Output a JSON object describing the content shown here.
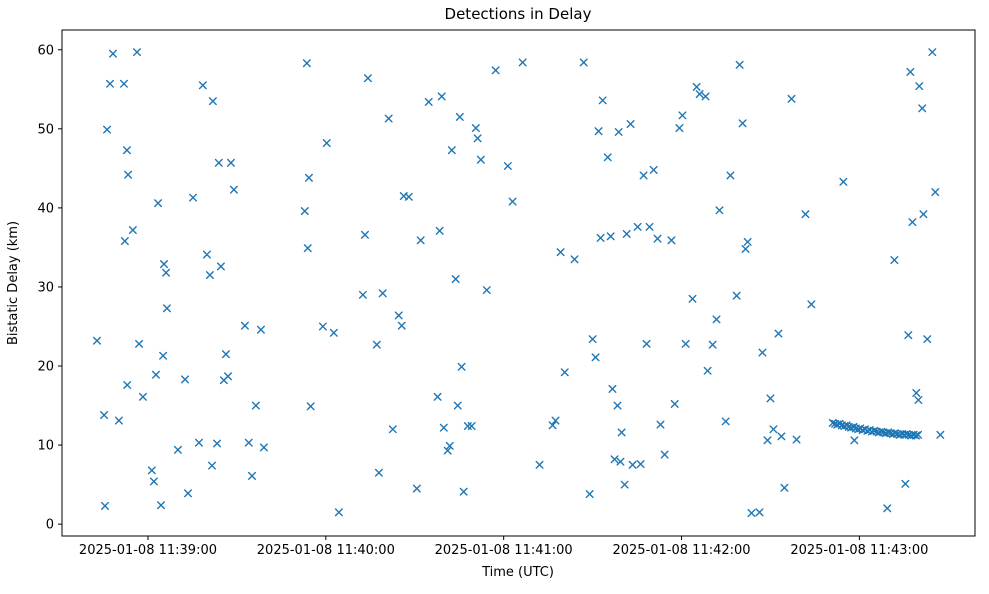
{
  "chart_data": {
    "type": "scatter",
    "title": "Detections in Delay",
    "xlabel": "Time (UTC)",
    "ylabel": "Bistatic Delay (km)",
    "marker": "x",
    "marker_color": "#1f77b4",
    "grid": false,
    "legend": "none",
    "x_unit": "seconds since 2025-01-08 11:38:00 UTC",
    "xlim": [
      31,
      339
    ],
    "ylim": [
      -1.5,
      62.5
    ],
    "x_ticks": [
      {
        "value": 60,
        "label": "2025-01-08 11:39:00"
      },
      {
        "value": 120,
        "label": "2025-01-08 11:40:00"
      },
      {
        "value": 180,
        "label": "2025-01-08 11:41:00"
      },
      {
        "value": 240,
        "label": "2025-01-08 11:42:00"
      },
      {
        "value": 300,
        "label": "2025-01-08 11:43:00"
      }
    ],
    "y_ticks": [
      0,
      10,
      20,
      30,
      40,
      50,
      60
    ],
    "points": [
      [
        42.8,
        23.2
      ],
      [
        45.2,
        13.8
      ],
      [
        45.5,
        2.3
      ],
      [
        46.2,
        49.9
      ],
      [
        47.2,
        55.7
      ],
      [
        48.2,
        59.5
      ],
      [
        50.2,
        13.1
      ],
      [
        51.9,
        55.7
      ],
      [
        52.2,
        35.8
      ],
      [
        52.9,
        47.3
      ],
      [
        53.3,
        44.2
      ],
      [
        53.0,
        17.6
      ],
      [
        54.9,
        37.2
      ],
      [
        56.3,
        59.7
      ],
      [
        57.0,
        22.8
      ],
      [
        58.3,
        16.1
      ],
      [
        61.3,
        6.8
      ],
      [
        62.0,
        5.4
      ],
      [
        62.7,
        18.9
      ],
      [
        63.4,
        40.6
      ],
      [
        64.4,
        2.4
      ],
      [
        65.1,
        21.3
      ],
      [
        65.4,
        32.9
      ],
      [
        66.1,
        31.8
      ],
      [
        66.4,
        27.3
      ],
      [
        70.1,
        9.4
      ],
      [
        72.5,
        18.3
      ],
      [
        73.5,
        3.9
      ],
      [
        75.2,
        41.3
      ],
      [
        77.2,
        10.3
      ],
      [
        78.5,
        55.5
      ],
      [
        79.9,
        34.1
      ],
      [
        80.9,
        31.5
      ],
      [
        81.6,
        7.4
      ],
      [
        81.9,
        53.5
      ],
      [
        83.3,
        10.2
      ],
      [
        83.9,
        45.7
      ],
      [
        84.6,
        32.6
      ],
      [
        85.6,
        18.2
      ],
      [
        86.3,
        21.5
      ],
      [
        87.0,
        18.7
      ],
      [
        88.0,
        45.7
      ],
      [
        89.0,
        42.3
      ],
      [
        92.7,
        25.1
      ],
      [
        94.0,
        10.3
      ],
      [
        95.1,
        6.1
      ],
      [
        96.4,
        15.0
      ],
      [
        98.1,
        24.6
      ],
      [
        99.1,
        9.7
      ],
      [
        112.9,
        39.6
      ],
      [
        113.6,
        58.3
      ],
      [
        113.9,
        34.9
      ],
      [
        114.3,
        43.8
      ],
      [
        114.9,
        14.9
      ],
      [
        119.0,
        25.0
      ],
      [
        120.3,
        48.2
      ],
      [
        122.7,
        24.2
      ],
      [
        124.4,
        1.5
      ],
      [
        132.5,
        29.0
      ],
      [
        133.2,
        36.6
      ],
      [
        134.2,
        56.4
      ],
      [
        137.2,
        22.7
      ],
      [
        137.9,
        6.5
      ],
      [
        139.2,
        29.2
      ],
      [
        141.2,
        51.3
      ],
      [
        142.6,
        12.0
      ],
      [
        144.6,
        26.4
      ],
      [
        145.6,
        25.1
      ],
      [
        146.3,
        41.5
      ],
      [
        148.0,
        41.4
      ],
      [
        150.7,
        4.5
      ],
      [
        152.0,
        35.9
      ],
      [
        154.7,
        53.4
      ],
      [
        157.7,
        16.1
      ],
      [
        158.4,
        37.1
      ],
      [
        159.1,
        54.1
      ],
      [
        159.8,
        12.2
      ],
      [
        161.1,
        9.3
      ],
      [
        161.8,
        9.9
      ],
      [
        162.5,
        47.3
      ],
      [
        163.8,
        31.0
      ],
      [
        164.5,
        15.0
      ],
      [
        165.2,
        51.5
      ],
      [
        165.8,
        19.9
      ],
      [
        166.5,
        4.1
      ],
      [
        167.9,
        12.4
      ],
      [
        169.2,
        12.4
      ],
      [
        170.6,
        50.1
      ],
      [
        171.2,
        48.8
      ],
      [
        172.3,
        46.1
      ],
      [
        174.3,
        29.6
      ],
      [
        177.3,
        57.4
      ],
      [
        181.4,
        45.3
      ],
      [
        183.0,
        40.8
      ],
      [
        186.4,
        58.4
      ],
      [
        192.1,
        7.5
      ],
      [
        196.5,
        12.5
      ],
      [
        197.5,
        13.1
      ],
      [
        199.2,
        34.4
      ],
      [
        200.6,
        19.2
      ],
      [
        203.9,
        33.5
      ],
      [
        207.0,
        58.4
      ],
      [
        209.0,
        3.8
      ],
      [
        210.0,
        23.4
      ],
      [
        211.0,
        21.1
      ],
      [
        212.0,
        49.7
      ],
      [
        212.7,
        36.2
      ],
      [
        213.4,
        53.6
      ],
      [
        215.1,
        46.4
      ],
      [
        216.1,
        36.4
      ],
      [
        216.7,
        17.1
      ],
      [
        217.4,
        8.2
      ],
      [
        218.4,
        15.0
      ],
      [
        218.8,
        49.6
      ],
      [
        219.4,
        7.9
      ],
      [
        219.8,
        11.6
      ],
      [
        220.8,
        5.0
      ],
      [
        221.5,
        36.7
      ],
      [
        222.8,
        50.6
      ],
      [
        223.5,
        7.5
      ],
      [
        225.2,
        37.6
      ],
      [
        226.2,
        7.6
      ],
      [
        227.2,
        44.1
      ],
      [
        228.2,
        22.8
      ],
      [
        229.2,
        37.6
      ],
      [
        230.6,
        44.8
      ],
      [
        231.9,
        36.1
      ],
      [
        232.9,
        12.6
      ],
      [
        234.3,
        8.8
      ],
      [
        236.6,
        35.9
      ],
      [
        237.7,
        15.2
      ],
      [
        239.3,
        50.1
      ],
      [
        240.3,
        51.7
      ],
      [
        241.4,
        22.8
      ],
      [
        243.7,
        28.5
      ],
      [
        245.1,
        55.3
      ],
      [
        246.1,
        54.4
      ],
      [
        248.1,
        54.1
      ],
      [
        248.8,
        19.4
      ],
      [
        250.5,
        22.7
      ],
      [
        251.8,
        25.9
      ],
      [
        252.8,
        39.7
      ],
      [
        254.9,
        13.0
      ],
      [
        256.5,
        44.1
      ],
      [
        258.6,
        28.9
      ],
      [
        259.6,
        58.1
      ],
      [
        260.6,
        50.7
      ],
      [
        261.6,
        34.8
      ],
      [
        262.3,
        35.7
      ],
      [
        263.6,
        1.4
      ],
      [
        266.3,
        1.5
      ],
      [
        267.3,
        21.7
      ],
      [
        269.0,
        10.6
      ],
      [
        270.0,
        15.9
      ],
      [
        271.0,
        12.0
      ],
      [
        272.7,
        24.1
      ],
      [
        273.7,
        11.1
      ],
      [
        274.7,
        4.6
      ],
      [
        277.1,
        53.8
      ],
      [
        278.8,
        10.7
      ],
      [
        281.8,
        39.2
      ],
      [
        283.8,
        27.8
      ],
      [
        294.6,
        43.3
      ],
      [
        298.3,
        10.6
      ],
      [
        309.4,
        2.0
      ],
      [
        311.8,
        33.4
      ],
      [
        315.5,
        5.1
      ],
      [
        316.5,
        23.9
      ],
      [
        317.2,
        57.2
      ],
      [
        317.9,
        38.2
      ],
      [
        319.2,
        16.6
      ],
      [
        319.9,
        15.7
      ],
      [
        320.2,
        55.4
      ],
      [
        321.2,
        52.6
      ],
      [
        321.6,
        39.2
      ],
      [
        322.9,
        23.4
      ],
      [
        324.6,
        59.7
      ],
      [
        325.6,
        42.0
      ],
      [
        327.3,
        11.3
      ]
    ],
    "track_points": [
      [
        291.0,
        12.8
      ],
      [
        291.8,
        12.7
      ],
      [
        292.5,
        12.6
      ],
      [
        293.3,
        12.7
      ],
      [
        294.1,
        12.5
      ],
      [
        294.9,
        12.4
      ],
      [
        295.7,
        12.5
      ],
      [
        296.4,
        12.3
      ],
      [
        297.2,
        12.2
      ],
      [
        298.0,
        12.3
      ],
      [
        298.8,
        12.1
      ],
      [
        299.6,
        12.0
      ],
      [
        300.3,
        12.1
      ],
      [
        301.1,
        11.9
      ],
      [
        301.9,
        12.0
      ],
      [
        302.7,
        11.8
      ],
      [
        303.5,
        11.9
      ],
      [
        304.2,
        11.7
      ],
      [
        305.0,
        11.8
      ],
      [
        305.8,
        11.7
      ],
      [
        306.6,
        11.6
      ],
      [
        307.4,
        11.7
      ],
      [
        308.1,
        11.6
      ],
      [
        308.9,
        11.5
      ],
      [
        309.7,
        11.6
      ],
      [
        310.5,
        11.5
      ],
      [
        311.3,
        11.4
      ],
      [
        312.0,
        11.5
      ],
      [
        312.8,
        11.4
      ],
      [
        313.6,
        11.3
      ],
      [
        314.4,
        11.4
      ],
      [
        315.2,
        11.3
      ],
      [
        315.9,
        11.4
      ],
      [
        316.7,
        11.3
      ],
      [
        317.5,
        11.2
      ],
      [
        318.3,
        11.3
      ],
      [
        319.1,
        11.2
      ],
      [
        319.8,
        11.3
      ]
    ]
  }
}
